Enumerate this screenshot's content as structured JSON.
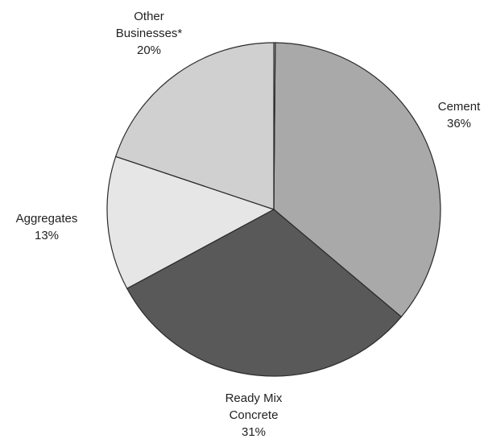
{
  "chart_data": {
    "type": "pie",
    "title": "",
    "slices": [
      {
        "label": [
          "Cement"
        ],
        "value_label": "36%",
        "value": 36,
        "color": "#a9a9a9"
      },
      {
        "label": [
          "Ready Mix",
          "Concrete"
        ],
        "value_label": "31%",
        "value": 31,
        "color": "#595959"
      },
      {
        "label": [
          "Aggregates"
        ],
        "value_label": "13%",
        "value": 13,
        "color": "#e6e6e6"
      },
      {
        "label": [
          "Other",
          "Businesses*"
        ],
        "value_label": "20%",
        "value": 20,
        "color": "#d0d0d0"
      }
    ],
    "start_angle_deg": 0.5,
    "direction": "clockwise",
    "legend": "none"
  }
}
